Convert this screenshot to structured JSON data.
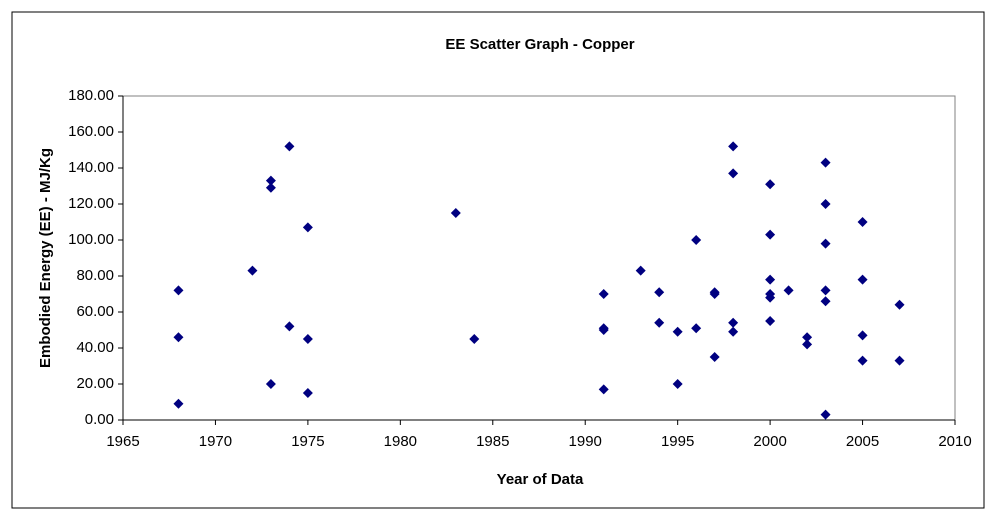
{
  "chart_data": {
    "type": "scatter",
    "title": "EE Scatter Graph - Copper",
    "xlabel": "Year of Data",
    "ylabel": "Embodied Energy (EE) - MJ/Kg",
    "x": [
      1968,
      1968,
      1968,
      1972,
      1973,
      1973,
      1973,
      1974,
      1974,
      1975,
      1975,
      1975,
      1983,
      1984,
      1991,
      1991,
      1991,
      1991,
      1993,
      1994,
      1994,
      1995,
      1995,
      1996,
      1996,
      1997,
      1997,
      1997,
      1998,
      1998,
      1998,
      1998,
      2000,
      2000,
      2000,
      2000,
      2000,
      2000,
      2001,
      2002,
      2002,
      2003,
      2003,
      2003,
      2003,
      2003,
      2003,
      2005,
      2005,
      2005,
      2005,
      2007,
      2007
    ],
    "values": [
      72,
      46,
      9,
      83,
      133,
      129,
      20,
      152,
      52,
      107,
      45,
      15,
      115,
      45,
      70,
      51,
      50,
      17,
      83,
      71,
      54,
      49,
      20,
      100,
      51,
      71,
      70,
      35,
      152,
      137,
      54,
      49,
      131,
      103,
      78,
      70,
      68,
      55,
      72,
      46,
      42,
      143,
      120,
      98,
      72,
      66,
      3,
      110,
      78,
      47,
      33,
      64,
      33
    ],
    "color": "#000080",
    "xlim": [
      1965,
      2010
    ],
    "xticks": [
      1965,
      1970,
      1975,
      1980,
      1985,
      1990,
      1995,
      2000,
      2005,
      2010
    ],
    "ylim": [
      0,
      180
    ],
    "yticks": [
      {
        "value": 0,
        "label": "0.00"
      },
      {
        "value": 20,
        "label": "20.00"
      },
      {
        "value": 40,
        "label": "40.00"
      },
      {
        "value": 60,
        "label": "60.00"
      },
      {
        "value": 80,
        "label": "80.00"
      },
      {
        "value": 100,
        "label": "100.00"
      },
      {
        "value": 120,
        "label": "120.00"
      },
      {
        "value": 140,
        "label": "140.00"
      },
      {
        "value": 160,
        "label": "160.00"
      },
      {
        "value": 180,
        "label": "180.00"
      }
    ],
    "grid": false
  }
}
